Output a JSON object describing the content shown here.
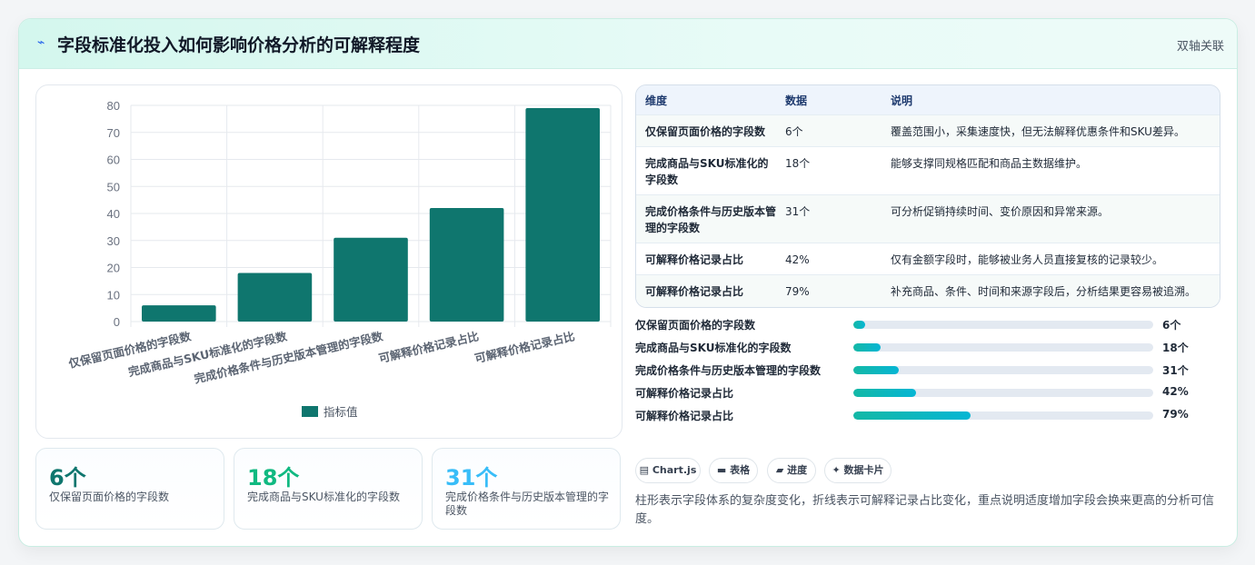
{
  "header": {
    "icon": "lightning-icon",
    "title": "字段标准化投入如何影响价格分析的可解释程度",
    "subtitle": "双轴关联"
  },
  "chart_data": {
    "type": "bar",
    "categories": [
      "仅保留页面价格的字段数",
      "完成商品与SKU标准化的字段数",
      "完成价格条件与历史版本管理的字段数",
      "可解释价格记录占比",
      "可解释价格记录占比"
    ],
    "series": [
      {
        "name": "指标值",
        "values": [
          6,
          18,
          31,
          42,
          79
        ],
        "color": "#0f766e"
      }
    ],
    "yticks": [
      "0",
      "10",
      "20",
      "30",
      "40",
      "50",
      "60",
      "70",
      "80"
    ],
    "ylim": [
      0,
      80
    ],
    "grid": true,
    "legend": "bottom"
  },
  "kpis": [
    {
      "value": "6个",
      "label": "仅保留页面价格的字段数",
      "color": "#0f766e"
    },
    {
      "value": "18个",
      "label": "完成商品与SKU标准化的字段数",
      "color": "#10b981"
    },
    {
      "value": "31个",
      "label": "完成价格条件与历史版本管理的字段数",
      "color": "#38bdf8"
    }
  ],
  "table": {
    "headers": [
      "维度",
      "数据",
      "说明"
    ],
    "rows": [
      {
        "dim": "仅保留页面价格的字段数",
        "val": "6个",
        "desc": "覆盖范围小，采集速度快，但无法解释优惠条件和SKU差异。"
      },
      {
        "dim": "完成商品与SKU标准化的字段数",
        "val": "18个",
        "desc": "能够支撑同规格匹配和商品主数据维护。"
      },
      {
        "dim": "完成价格条件与历史版本管理的字段数",
        "val": "31个",
        "desc": "可分析促销持续时间、变价原因和异常来源。"
      },
      {
        "dim": "可解释价格记录占比",
        "val": "42%",
        "desc": "仅有金额字段时，能够被业务人员直接复核的记录较少。"
      },
      {
        "dim": "可解释价格记录占比",
        "val": "79%",
        "desc": "补充商品、条件、时间和来源字段后，分析结果更容易被追溯。"
      }
    ]
  },
  "progress": [
    {
      "label": "仅保留页面价格的字段数",
      "value": "6个",
      "fraction": 0.04
    },
    {
      "label": "完成商品与SKU标准化的字段数",
      "value": "18个",
      "fraction": 0.09
    },
    {
      "label": "完成价格条件与历史版本管理的字段数",
      "value": "31个",
      "fraction": 0.15
    },
    {
      "label": "可解释价格记录占比",
      "value": "42%",
      "fraction": 0.21
    },
    {
      "label": "可解释价格记录占比",
      "value": "79%",
      "fraction": 0.39
    }
  ],
  "tags": [
    {
      "icon": "▤",
      "label": "Chart.js"
    },
    {
      "icon": "▬",
      "label": "表格"
    },
    {
      "icon": "▰",
      "label": "进度"
    },
    {
      "icon": "✦",
      "label": "数据卡片"
    }
  ],
  "note": "柱形表示字段体系的复杂度变化，折线表示可解释记录占比变化，重点说明适度增加字段会换来更高的分析可信度。"
}
